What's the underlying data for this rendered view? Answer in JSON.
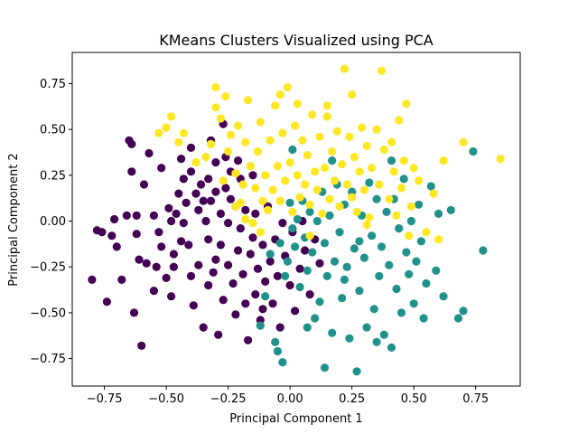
{
  "chart_data": {
    "type": "scatter",
    "title": "KMeans Clusters Visualized using PCA",
    "xlabel": "Principal Component 1",
    "ylabel": "Principal Component 2",
    "xlim": [
      -0.88,
      0.93
    ],
    "ylim": [
      -0.9,
      0.92
    ],
    "xticks": [
      -0.75,
      -0.5,
      -0.25,
      0.0,
      0.25,
      0.5,
      0.75
    ],
    "xtick_labels": [
      "−0.75",
      "−0.50",
      "−0.25",
      "0.00",
      "0.25",
      "0.50",
      "0.75"
    ],
    "yticks": [
      -0.75,
      -0.5,
      -0.25,
      0.0,
      0.25,
      0.5,
      0.75
    ],
    "ytick_labels": [
      "−0.75",
      "−0.50",
      "−0.25",
      "0.00",
      "0.25",
      "0.50",
      "0.75"
    ],
    "grid": false,
    "legend": "none",
    "series": [
      {
        "color": "#440154",
        "points": [
          [
            -0.8,
            -0.32
          ],
          [
            -0.78,
            -0.05
          ],
          [
            -0.76,
            -0.06
          ],
          [
            -0.74,
            -0.44
          ],
          [
            -0.72,
            -0.08
          ],
          [
            -0.71,
            0.01
          ],
          [
            -0.7,
            -0.14
          ],
          [
            -0.68,
            -0.32
          ],
          [
            -0.66,
            0.03
          ],
          [
            -0.65,
            0.44
          ],
          [
            -0.64,
            0.42
          ],
          [
            -0.64,
            0.27
          ],
          [
            -0.63,
            -0.5
          ],
          [
            -0.62,
            0.03
          ],
          [
            -0.61,
            -0.21
          ],
          [
            -0.6,
            -0.68
          ],
          [
            -0.59,
            0.2
          ],
          [
            -0.58,
            -0.23
          ],
          [
            -0.57,
            0.37
          ],
          [
            -0.55,
            0.03
          ],
          [
            -0.54,
            -0.25
          ],
          [
            -0.53,
            -0.06
          ],
          [
            -0.52,
            0.29
          ],
          [
            -0.52,
            -0.14
          ],
          [
            -0.5,
            -0.31
          ],
          [
            -0.48,
            -0.41
          ],
          [
            -0.48,
            0.0
          ],
          [
            -0.47,
            -0.25
          ],
          [
            -0.46,
            0.04
          ],
          [
            -0.45,
            0.15
          ],
          [
            -0.44,
            -0.11
          ],
          [
            -0.43,
            0.23
          ],
          [
            -0.43,
            -0.01
          ],
          [
            -0.42,
            0.1
          ],
          [
            -0.41,
            -0.13
          ],
          [
            -0.4,
            0.4
          ],
          [
            -0.4,
            0.27
          ],
          [
            -0.4,
            -0.3
          ],
          [
            -0.38,
            0.15
          ],
          [
            -0.37,
            0.06
          ],
          [
            -0.37,
            -0.24
          ],
          [
            -0.36,
            0.2
          ],
          [
            -0.35,
            -0.58
          ],
          [
            -0.35,
            0.11
          ],
          [
            -0.34,
            0.0
          ],
          [
            -0.33,
            -0.35
          ],
          [
            -0.33,
            -0.1
          ],
          [
            -0.32,
            0.44
          ],
          [
            -0.32,
            0.11
          ],
          [
            -0.31,
            -0.28
          ],
          [
            -0.3,
            0.32
          ],
          [
            -0.3,
            0.16
          ],
          [
            -0.3,
            -0.21
          ],
          [
            -0.28,
            0.04
          ],
          [
            -0.28,
            -0.13
          ],
          [
            -0.27,
            0.53
          ],
          [
            -0.27,
            -0.43
          ],
          [
            -0.26,
            0.35
          ],
          [
            -0.26,
            0.18
          ],
          [
            -0.25,
            -0.01
          ],
          [
            -0.25,
            -0.24
          ],
          [
            -0.24,
            0.12
          ],
          [
            -0.23,
            -0.34
          ],
          [
            -0.22,
            -0.51
          ],
          [
            -0.22,
            0.08
          ],
          [
            -0.21,
            -0.16
          ],
          [
            -0.2,
            0.23
          ],
          [
            -0.2,
            -0.04
          ],
          [
            -0.19,
            -0.29
          ],
          [
            -0.18,
            0.06
          ],
          [
            -0.18,
            -0.45
          ],
          [
            -0.17,
            -0.65
          ],
          [
            -0.16,
            -0.18
          ],
          [
            -0.15,
            -0.09
          ],
          [
            -0.14,
            -0.4
          ],
          [
            -0.14,
            0.04
          ],
          [
            -0.13,
            -0.26
          ],
          [
            -0.12,
            -0.54
          ],
          [
            -0.11,
            -0.13
          ],
          [
            -0.1,
            -0.33
          ],
          [
            -0.09,
            0.08
          ],
          [
            -0.08,
            -0.22
          ],
          [
            -0.07,
            -0.45
          ],
          [
            -0.06,
            -0.1
          ],
          [
            -0.05,
            -0.3
          ],
          [
            -0.04,
            -0.58
          ],
          [
            -0.03,
            -0.01
          ],
          [
            -0.02,
            -0.19
          ],
          [
            0.0,
            -0.35
          ],
          [
            0.01,
            -0.06
          ],
          [
            0.02,
            -0.49
          ],
          [
            0.04,
            -0.26
          ],
          [
            0.05,
            0.0
          ],
          [
            0.06,
            -0.16
          ],
          [
            0.08,
            -0.4
          ],
          [
            0.1,
            -0.1
          ],
          [
            0.12,
            -0.23
          ],
          [
            -0.47,
            -0.18
          ],
          [
            -0.55,
            -0.38
          ],
          [
            -0.29,
            -0.62
          ],
          [
            -0.39,
            -0.46
          ],
          [
            -0.62,
            -0.07
          ],
          [
            -0.49,
            0.07
          ],
          [
            -0.33,
            0.23
          ],
          [
            -0.21,
            0.33
          ],
          [
            -0.15,
            0.25
          ],
          [
            -0.44,
            0.34
          ],
          [
            -0.11,
            -0.48
          ],
          [
            -0.24,
            0.27
          ]
        ]
      },
      {
        "color": "#21918c",
        "points": [
          [
            -0.12,
            -0.57
          ],
          [
            -0.1,
            -0.41
          ],
          [
            -0.08,
            -0.18
          ],
          [
            -0.06,
            -0.66
          ],
          [
            -0.05,
            -0.71
          ],
          [
            -0.04,
            -0.12
          ],
          [
            -0.03,
            -0.77
          ],
          [
            -0.02,
            -0.3
          ],
          [
            -0.01,
            -0.22
          ],
          [
            0.0,
            0.1
          ],
          [
            0.01,
            -0.04
          ],
          [
            0.01,
            0.39
          ],
          [
            0.02,
            -0.14
          ],
          [
            0.03,
            0.01
          ],
          [
            0.04,
            -0.36
          ],
          [
            0.05,
            0.11
          ],
          [
            0.06,
            -0.09
          ],
          [
            0.07,
            -0.27
          ],
          [
            0.08,
            0.05
          ],
          [
            0.09,
            -0.17
          ],
          [
            0.1,
            -0.53
          ],
          [
            0.11,
            0.0
          ],
          [
            0.12,
            -0.44
          ],
          [
            0.13,
            0.16
          ],
          [
            0.14,
            -0.12
          ],
          [
            0.15,
            -0.3
          ],
          [
            0.16,
            0.03
          ],
          [
            0.17,
            -0.61
          ],
          [
            0.18,
            -0.22
          ],
          [
            0.19,
            0.2
          ],
          [
            0.2,
            -0.06
          ],
          [
            0.21,
            -0.42
          ],
          [
            0.22,
            0.09
          ],
          [
            0.23,
            -0.25
          ],
          [
            0.24,
            -0.64
          ],
          [
            0.25,
            0.16
          ],
          [
            0.26,
            -0.15
          ],
          [
            0.27,
            -0.82
          ],
          [
            0.28,
            -0.38
          ],
          [
            0.29,
            0.03
          ],
          [
            0.3,
            -0.2
          ],
          [
            0.31,
            -0.58
          ],
          [
            0.32,
            0.21
          ],
          [
            0.33,
            -0.08
          ],
          [
            0.34,
            -0.48
          ],
          [
            0.35,
            0.12
          ],
          [
            0.36,
            -0.3
          ],
          [
            0.37,
            -0.14
          ],
          [
            0.38,
            -0.62
          ],
          [
            0.39,
            0.05
          ],
          [
            0.4,
            -0.24
          ],
          [
            0.41,
            -0.69
          ],
          [
            0.42,
            0.12
          ],
          [
            0.43,
            -0.37
          ],
          [
            0.44,
            -0.04
          ],
          [
            0.45,
            -0.5
          ],
          [
            0.46,
            0.23
          ],
          [
            0.47,
            -0.17
          ],
          [
            0.48,
            -0.29
          ],
          [
            0.49,
            0.0
          ],
          [
            0.5,
            -0.45
          ],
          [
            0.51,
            -0.22
          ],
          [
            0.52,
            0.09
          ],
          [
            0.53,
            -0.11
          ],
          [
            0.55,
            -0.34
          ],
          [
            0.57,
            0.19
          ],
          [
            0.59,
            -0.27
          ],
          [
            0.6,
            0.04
          ],
          [
            0.62,
            -0.41
          ],
          [
            0.65,
            0.06
          ],
          [
            0.68,
            -0.53
          ],
          [
            0.7,
            -0.49
          ],
          [
            0.74,
            0.38
          ],
          [
            0.78,
            -0.16
          ],
          [
            0.14,
            -0.8
          ],
          [
            0.35,
            -0.66
          ],
          [
            0.54,
            -0.53
          ],
          [
            0.22,
            -0.32
          ],
          [
            0.07,
            -0.58
          ],
          [
            0.28,
            -0.11
          ],
          [
            0.41,
            0.33
          ],
          [
            0.17,
            0.33
          ]
        ]
      },
      {
        "color": "#fde725",
        "points": [
          [
            -0.53,
            0.48
          ],
          [
            -0.5,
            0.51
          ],
          [
            -0.48,
            0.57
          ],
          [
            -0.45,
            0.43
          ],
          [
            -0.43,
            0.48
          ],
          [
            -0.38,
            0.32
          ],
          [
            -0.34,
            0.35
          ],
          [
            -0.32,
            0.42
          ],
          [
            -0.3,
            0.62
          ],
          [
            -0.28,
            0.56
          ],
          [
            -0.27,
            0.22
          ],
          [
            -0.26,
            0.68
          ],
          [
            -0.25,
            0.38
          ],
          [
            -0.24,
            0.47
          ],
          [
            -0.22,
            0.26
          ],
          [
            -0.21,
            0.52
          ],
          [
            -0.2,
            0.1
          ],
          [
            -0.19,
            0.2
          ],
          [
            -0.18,
            0.43
          ],
          [
            -0.17,
            0.66
          ],
          [
            -0.16,
            0.3
          ],
          [
            -0.15,
            -0.01
          ],
          [
            -0.14,
            0.18
          ],
          [
            -0.13,
            0.38
          ],
          [
            -0.12,
            0.54
          ],
          [
            -0.11,
            0.11
          ],
          [
            -0.1,
            0.25
          ],
          [
            -0.09,
            0.06
          ],
          [
            -0.08,
            0.44
          ],
          [
            -0.07,
            0.17
          ],
          [
            -0.06,
            0.63
          ],
          [
            -0.05,
            0.3
          ],
          [
            -0.04,
            0.11
          ],
          [
            -0.03,
            0.48
          ],
          [
            -0.02,
            0.22
          ],
          [
            -0.01,
            0.73
          ],
          [
            0.0,
            0.32
          ],
          [
            0.01,
            0.05
          ],
          [
            0.02,
            0.52
          ],
          [
            0.03,
            0.25
          ],
          [
            0.04,
            0.13
          ],
          [
            0.05,
            0.44
          ],
          [
            0.06,
            0.2
          ],
          [
            0.07,
            0.36
          ],
          [
            0.08,
            0.09
          ],
          [
            0.09,
            0.58
          ],
          [
            0.1,
            0.27
          ],
          [
            0.11,
            0.17
          ],
          [
            0.12,
            0.46
          ],
          [
            0.13,
            0.04
          ],
          [
            0.14,
            0.29
          ],
          [
            0.15,
            0.57
          ],
          [
            0.16,
            0.12
          ],
          [
            0.17,
            0.38
          ],
          [
            0.18,
            0.22
          ],
          [
            0.19,
            0.49
          ],
          [
            0.2,
            0.08
          ],
          [
            0.21,
            0.31
          ],
          [
            0.22,
            0.83
          ],
          [
            0.23,
            0.2
          ],
          [
            0.24,
            0.46
          ],
          [
            0.25,
            0.13
          ],
          [
            0.26,
            0.35
          ],
          [
            0.27,
            0.05
          ],
          [
            0.28,
            0.27
          ],
          [
            0.29,
            0.51
          ],
          [
            0.3,
            0.17
          ],
          [
            0.31,
            0.41
          ],
          [
            0.32,
            0.02
          ],
          [
            0.33,
            0.29
          ],
          [
            0.35,
            0.5
          ],
          [
            0.36,
            0.2
          ],
          [
            0.37,
            0.82
          ],
          [
            0.38,
            0.39
          ],
          [
            0.4,
            0.12
          ],
          [
            0.41,
            0.43
          ],
          [
            0.42,
            0.27
          ],
          [
            0.43,
            0.03
          ],
          [
            0.44,
            0.55
          ],
          [
            0.45,
            0.18
          ],
          [
            0.46,
            0.33
          ],
          [
            0.47,
            0.64
          ],
          [
            0.49,
            0.08
          ],
          [
            0.5,
            0.29
          ],
          [
            0.52,
            0.22
          ],
          [
            0.55,
            -0.06
          ],
          [
            0.58,
            0.15
          ],
          [
            0.62,
            0.33
          ],
          [
            0.7,
            0.43
          ],
          [
            0.85,
            0.34
          ],
          [
            -0.3,
            0.73
          ],
          [
            0.03,
            0.64
          ],
          [
            0.25,
            0.69
          ],
          [
            -0.04,
            0.69
          ],
          [
            0.6,
            -0.1
          ],
          [
            -0.22,
            0.08
          ],
          [
            0.15,
            0.63
          ],
          [
            0.48,
            -0.08
          ],
          [
            -0.12,
            -0.06
          ],
          [
            0.31,
            -0.02
          ],
          [
            -0.18,
            0.01
          ],
          [
            0.08,
            -0.08
          ]
        ]
      }
    ]
  }
}
